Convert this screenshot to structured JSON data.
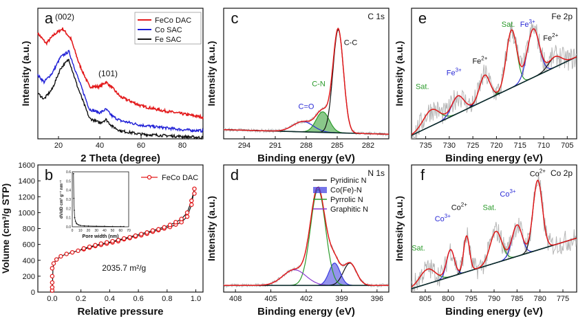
{
  "chart_data": [
    {
      "id": "a",
      "type": "line",
      "panel_letter": "a",
      "xlabel": "2 Theta (degree)",
      "ylabel": "Intensity (a.u.)",
      "xlim": [
        10,
        90
      ],
      "ylim": [
        0,
        1.15
      ],
      "xticks": [
        {
          "v": 20,
          "label": "20"
        },
        {
          "v": 40,
          "label": "40"
        },
        {
          "v": 60,
          "label": "60"
        },
        {
          "v": 80,
          "label": "80"
        }
      ],
      "legend": [
        {
          "name": "FeCo DAC",
          "color": "#e31a1c"
        },
        {
          "name": "Co SAC",
          "color": "#1f1fd6"
        },
        {
          "name": "Fe SAC",
          "color": "#111111"
        }
      ],
      "annotations": [
        {
          "text": "(002)",
          "x": 23,
          "y": 1.05
        },
        {
          "text": "(101)",
          "x": 44,
          "y": 0.55
        }
      ],
      "series": [
        {
          "name": "FeCo DAC",
          "color": "#e31a1c",
          "width": 1.6,
          "noise": 0.012,
          "x": [
            10,
            14,
            18,
            22,
            26,
            30,
            35,
            40,
            43,
            46,
            50,
            60,
            70,
            80,
            90
          ],
          "y": [
            0.93,
            0.84,
            0.92,
            0.97,
            0.88,
            0.66,
            0.46,
            0.46,
            0.5,
            0.45,
            0.37,
            0.29,
            0.25,
            0.22,
            0.19
          ]
        },
        {
          "name": "Co SAC",
          "color": "#1f1fd6",
          "width": 1.4,
          "noise": 0.012,
          "x": [
            10,
            13,
            17,
            21,
            25,
            29,
            35,
            40,
            43,
            46,
            50,
            60,
            70,
            80,
            90
          ],
          "y": [
            0.56,
            0.5,
            0.58,
            0.72,
            0.77,
            0.56,
            0.26,
            0.23,
            0.26,
            0.2,
            0.16,
            0.12,
            0.1,
            0.08,
            0.07
          ]
        },
        {
          "name": "Fe SAC",
          "color": "#111111",
          "width": 1.4,
          "noise": 0.012,
          "x": [
            10,
            13,
            17,
            21,
            25,
            29,
            35,
            40,
            43,
            46,
            50,
            60,
            70,
            80,
            90
          ],
          "y": [
            0.4,
            0.35,
            0.44,
            0.62,
            0.7,
            0.47,
            0.18,
            0.14,
            0.17,
            0.11,
            0.07,
            0.04,
            0.03,
            0.02,
            0.01
          ]
        }
      ]
    },
    {
      "id": "b",
      "type": "line",
      "panel_letter": "b",
      "xlabel": "Relative pressure",
      "ylabel": "Volume (cm³/g STP)",
      "xlim": [
        -0.1,
        1.05
      ],
      "ylim": [
        0,
        1600
      ],
      "xticks": [
        {
          "v": 0.0,
          "label": "0.0"
        },
        {
          "v": 0.2,
          "label": "0.2"
        },
        {
          "v": 0.4,
          "label": "0.4"
        },
        {
          "v": 0.6,
          "label": "0.6"
        },
        {
          "v": 0.8,
          "label": "0.8"
        },
        {
          "v": 1.0,
          "label": "1.0"
        }
      ],
      "yticks": [
        {
          "v": 0,
          "label": "0"
        },
        {
          "v": 200,
          "label": "200"
        },
        {
          "v": 400,
          "label": "400"
        },
        {
          "v": 600,
          "label": "600"
        },
        {
          "v": 800,
          "label": "800"
        },
        {
          "v": 1000,
          "label": "1000"
        },
        {
          "v": 1200,
          "label": "1200"
        },
        {
          "v": 1400,
          "label": "1400"
        },
        {
          "v": 1600,
          "label": "1600"
        }
      ],
      "legend": [
        {
          "name": "FeCo DAC",
          "color": "#e31a1c"
        }
      ],
      "annotation": "2035.7 m²/g",
      "series": [
        {
          "name": "Adsorption",
          "color": "#111111",
          "width": 1.2,
          "x": [
            0.0,
            0.002,
            0.005,
            0.01,
            0.03,
            0.06,
            0.1,
            0.2,
            0.3,
            0.4,
            0.5,
            0.6,
            0.7,
            0.8,
            0.85,
            0.9,
            0.94,
            0.97,
            0.99
          ],
          "y": [
            0,
            100,
            280,
            360,
            410,
            450,
            480,
            530,
            580,
            620,
            665,
            710,
            760,
            810,
            840,
            880,
            950,
            1100,
            1300
          ]
        },
        {
          "name": "Desorption",
          "color": "#111111",
          "width": 1.2,
          "x": [
            0.99,
            0.97,
            0.94,
            0.9,
            0.85,
            0.8,
            0.7,
            0.6,
            0.5,
            0.4,
            0.3,
            0.2
          ],
          "y": [
            1300,
            1150,
            1000,
            920,
            870,
            830,
            775,
            725,
            675,
            630,
            590,
            540
          ]
        }
      ],
      "markers": {
        "color": "#e31a1c",
        "x": [
          0.0,
          0.0,
          0.0,
          0.0,
          0.0,
          0.01,
          0.03,
          0.06,
          0.1,
          0.14,
          0.18,
          0.22,
          0.26,
          0.3,
          0.34,
          0.38,
          0.42,
          0.46,
          0.5,
          0.54,
          0.58,
          0.62,
          0.66,
          0.7,
          0.74,
          0.78,
          0.82,
          0.86,
          0.9,
          0.94,
          0.97,
          0.99,
          0.99,
          0.97,
          0.94,
          0.9,
          0.86,
          0.82,
          0.78,
          0.74,
          0.7,
          0.66,
          0.62,
          0.58,
          0.54,
          0.5,
          0.46,
          0.42,
          0.38,
          0.34,
          0.3,
          0.26,
          0.22
        ],
        "y": [
          20,
          60,
          120,
          200,
          300,
          360,
          410,
          450,
          480,
          500,
          520,
          540,
          560,
          580,
          595,
          610,
          625,
          640,
          665,
          680,
          700,
          715,
          735,
          760,
          780,
          800,
          820,
          850,
          880,
          950,
          1100,
          1240,
          1300,
          1150,
          1000,
          920,
          880,
          845,
          815,
          790,
          775,
          750,
          730,
          710,
          690,
          675,
          655,
          640,
          625,
          610,
          590,
          570,
          550
        ]
      },
      "inset": {
        "xlabel": "Pore width (nm)",
        "ylabel": "dV/dD cm³ g⁻¹ nm⁻¹",
        "xlim": [
          0,
          70
        ],
        "ylim": [
          0,
          0.6
        ],
        "xticks": [
          {
            "v": 0,
            "label": "0"
          },
          {
            "v": 10,
            "label": "10"
          },
          {
            "v": 20,
            "label": "20"
          },
          {
            "v": 30,
            "label": "30"
          },
          {
            "v": 40,
            "label": "40"
          },
          {
            "v": 50,
            "label": "50"
          },
          {
            "v": 60,
            "label": "60"
          },
          {
            "v": 70,
            "label": "70"
          }
        ],
        "yticks": [
          {
            "v": 0.0,
            "label": "0.0"
          },
          {
            "v": 0.1,
            "label": "0.1"
          },
          {
            "v": 0.2,
            "label": "0.2"
          },
          {
            "v": 0.3,
            "label": "0.3"
          },
          {
            "v": 0.4,
            "label": "0.4"
          },
          {
            "v": 0.5,
            "label": "0.5"
          },
          {
            "v": 0.6,
            "label": "0.6"
          }
        ],
        "x": [
          1.5,
          2,
          2.5,
          3,
          4,
          5,
          6,
          8,
          10,
          15,
          20,
          30,
          40,
          50,
          60,
          64
        ],
        "y": [
          0.58,
          0.31,
          0.18,
          0.1,
          0.06,
          0.04,
          0.03,
          0.02,
          0.015,
          0.01,
          0.008,
          0.006,
          0.005,
          0.004,
          0.003,
          0.003
        ]
      }
    },
    {
      "id": "c",
      "type": "line",
      "panel_letter": "c",
      "title": "C 1s",
      "xlabel": "Binding energy (eV)",
      "ylabel": "Intensity (a.u.)",
      "xlim": [
        296,
        280
      ],
      "ylim": [
        -0.04,
        1.1
      ],
      "reversed_x": true,
      "xticks": [
        {
          "v": 294,
          "label": "294"
        },
        {
          "v": 291,
          "label": "291"
        },
        {
          "v": 288,
          "label": "288"
        },
        {
          "v": 285,
          "label": "285"
        },
        {
          "v": 282,
          "label": "282"
        }
      ],
      "baseline": {
        "left": 0.04,
        "right": 0.0
      },
      "components": [
        {
          "name": "C=O",
          "center": 288.3,
          "fwhm": 2.3,
          "height": 0.09,
          "color": "#2a2ad6",
          "fill": false
        },
        {
          "name": "C-N",
          "center": 286.4,
          "fwhm": 1.5,
          "height": 0.18,
          "color": "#2a9a2a",
          "fill": true
        },
        {
          "name": "C-C",
          "center": 284.9,
          "fwhm": 1.2,
          "height": 0.9,
          "color": "#111111",
          "fill": false
        }
      ],
      "envelope_color": "#e31a1c",
      "labels": [
        {
          "text": "C=O",
          "x": 288.0,
          "y": 0.22,
          "color": "#2a2ad6"
        },
        {
          "text": "C-N",
          "x": 286.8,
          "y": 0.42,
          "color": "#2a9a2a"
        },
        {
          "text": "C-C",
          "x": 283.7,
          "y": 0.78,
          "color": "#111111"
        }
      ]
    },
    {
      "id": "d",
      "type": "line",
      "panel_letter": "d",
      "title": "N 1s",
      "xlabel": "Binding energy (eV)",
      "ylabel": "Intensity (a.u.)",
      "xlim": [
        409,
        395
      ],
      "ylim": [
        -0.04,
        1.1
      ],
      "reversed_x": true,
      "xticks": [
        {
          "v": 408,
          "label": "408"
        },
        {
          "v": 405,
          "label": "405"
        },
        {
          "v": 402,
          "label": "402"
        },
        {
          "v": 399,
          "label": "399"
        },
        {
          "v": 396,
          "label": "396"
        }
      ],
      "baseline": {
        "left": 0.02,
        "right": 0.02
      },
      "components": [
        {
          "name": "Pyridinic N",
          "center": 398.3,
          "fwhm": 1.3,
          "height": 0.2,
          "color": "#111111",
          "fill": false
        },
        {
          "name": "Co(Fe)-N",
          "center": 399.6,
          "fwhm": 1.1,
          "height": 0.2,
          "color": "#3a3adf",
          "fill": true
        },
        {
          "name": "Pyrrolic N",
          "center": 401.0,
          "fwhm": 1.5,
          "height": 0.86,
          "color": "#2a9a2a",
          "fill": false
        },
        {
          "name": "Graphitic N",
          "center": 403.0,
          "fwhm": 2.3,
          "height": 0.14,
          "color": "#8a3ad0",
          "fill": false
        }
      ],
      "envelope_color": "#e31a1c",
      "legend": [
        {
          "name": "Pyridinic N",
          "color": "#111111",
          "kind": "line"
        },
        {
          "name": "Co(Fe)-N",
          "color": "#3a3adf",
          "kind": "fill"
        },
        {
          "name": "Pyrrolic N",
          "color": "#2a9a2a",
          "kind": "line"
        },
        {
          "name": "Graphitic N",
          "color": "#8a3ad0",
          "kind": "line"
        }
      ]
    },
    {
      "id": "e",
      "type": "line",
      "panel_letter": "e",
      "title": "Fe 2p",
      "xlabel": "Binding energy (eV)",
      "ylabel": "Intensity (a.u.)",
      "xlim": [
        738,
        703
      ],
      "ylim": [
        -0.03,
        1.1
      ],
      "reversed_x": true,
      "xticks": [
        {
          "v": 735,
          "label": "735"
        },
        {
          "v": 730,
          "label": "730"
        },
        {
          "v": 725,
          "label": "725"
        },
        {
          "v": 720,
          "label": "720"
        },
        {
          "v": 715,
          "label": "715"
        },
        {
          "v": 710,
          "label": "710"
        },
        {
          "v": 705,
          "label": "705"
        }
      ],
      "baseline": {
        "left": 0.0,
        "right": 0.68
      },
      "noise": 0.1,
      "components": [
        {
          "name": "Sat.",
          "center": 733.8,
          "fwhm": 4.0,
          "height": 0.14,
          "color": "#2a9a2a",
          "fill": false
        },
        {
          "name": "Fe3+",
          "center": 728.2,
          "fwhm": 3.0,
          "height": 0.15,
          "color": "#2a2ad6",
          "fill": false
        },
        {
          "name": "Fe2+",
          "center": 722.5,
          "fwhm": 2.6,
          "height": 0.22,
          "color": "#111111",
          "fill": false
        },
        {
          "name": "Sat.",
          "center": 716.8,
          "fwhm": 2.6,
          "height": 0.5,
          "color": "#2a9a2a",
          "fill": false
        },
        {
          "name": "Fe3+",
          "center": 712.2,
          "fwhm": 3.0,
          "height": 0.42,
          "color": "#2a2ad6",
          "fill": false
        },
        {
          "name": "Fe2+",
          "center": 707.6,
          "fwhm": 3.2,
          "height": 0.09,
          "color": "#111111",
          "fill": false
        }
      ],
      "envelope_color": "#e31a1c",
      "labels": [
        {
          "text": "Sat.",
          "sup": "",
          "x": 735.7,
          "y": 0.4,
          "color": "#2a9a2a"
        },
        {
          "text": "Fe",
          "sup": "3+",
          "x": 729.0,
          "y": 0.52,
          "color": "#2a2ad6"
        },
        {
          "text": "Fe",
          "sup": "2+",
          "x": 723.5,
          "y": 0.62,
          "color": "#111111"
        },
        {
          "text": "Sat.",
          "sup": "",
          "x": 717.5,
          "y": 0.94,
          "color": "#2a9a2a"
        },
        {
          "text": "Fe",
          "sup": "3+",
          "x": 713.4,
          "y": 0.94,
          "color": "#2a2ad6"
        },
        {
          "text": "Fe",
          "sup": "2+",
          "x": 708.5,
          "y": 0.82,
          "color": "#111111"
        }
      ]
    },
    {
      "id": "f",
      "type": "line",
      "panel_letter": "f",
      "title": "Co 2p",
      "xlabel": "Binding energy (eV)",
      "ylabel": "Intensity (a.u.)",
      "xlim": [
        808,
        772
      ],
      "ylim": [
        -0.03,
        1.1
      ],
      "reversed_x": true,
      "xticks": [
        {
          "v": 805,
          "label": "805"
        },
        {
          "v": 800,
          "label": "800"
        },
        {
          "v": 795,
          "label": "795"
        },
        {
          "v": 790,
          "label": "790"
        },
        {
          "v": 785,
          "label": "785"
        },
        {
          "v": 780,
          "label": "780"
        },
        {
          "v": 775,
          "label": "775"
        }
      ],
      "baseline": {
        "left": 0.0,
        "right": 0.45
      },
      "noise": 0.1,
      "components": [
        {
          "name": "Sat.",
          "center": 804.5,
          "fwhm": 4.0,
          "height": 0.13,
          "color": "#2a9a2a",
          "fill": false
        },
        {
          "name": "Co3+",
          "center": 799.5,
          "fwhm": 2.0,
          "height": 0.24,
          "color": "#2a2ad6",
          "fill": false
        },
        {
          "name": "Co2+",
          "center": 796.0,
          "fwhm": 1.5,
          "height": 0.32,
          "color": "#111111",
          "fill": false
        },
        {
          "name": "Sat.",
          "center": 789.6,
          "fwhm": 3.0,
          "height": 0.28,
          "color": "#2a9a2a",
          "fill": false
        },
        {
          "name": "Co3+",
          "center": 785.0,
          "fwhm": 2.6,
          "height": 0.28,
          "color": "#2a2ad6",
          "fill": false
        },
        {
          "name": "Co2+",
          "center": 780.5,
          "fwhm": 2.4,
          "height": 0.62,
          "color": "#111111",
          "fill": false
        }
      ],
      "envelope_color": "#e31a1c",
      "labels": [
        {
          "text": "Sat.",
          "sup": "",
          "x": 806.5,
          "y": 0.34,
          "color": "#2a9a2a"
        },
        {
          "text": "Co",
          "sup": "3+",
          "x": 801.2,
          "y": 0.6,
          "color": "#2a2ad6"
        },
        {
          "text": "Co",
          "sup": "2+",
          "x": 797.6,
          "y": 0.7,
          "color": "#111111"
        },
        {
          "text": "Sat.",
          "sup": "",
          "x": 791.0,
          "y": 0.7,
          "color": "#2a9a2a"
        },
        {
          "text": "Co",
          "sup": "3+",
          "x": 787.0,
          "y": 0.82,
          "color": "#2a2ad6"
        },
        {
          "text": "Co",
          "sup": "2+",
          "x": 780.5,
          "y": 1.0,
          "color": "#111111"
        }
      ]
    }
  ]
}
